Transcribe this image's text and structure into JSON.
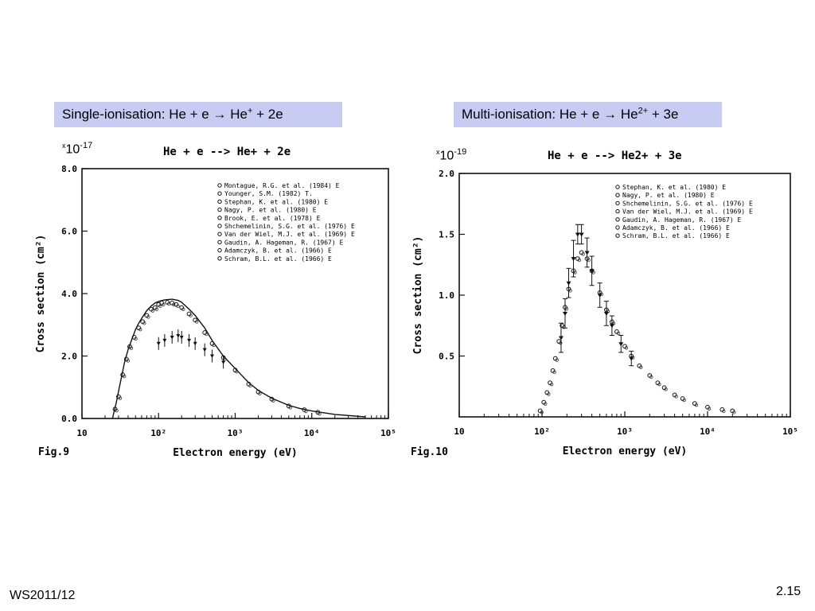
{
  "slide": {
    "left_caption": {
      "base": "Single-ionisation: He + e → He",
      "sup": "+",
      "tail": " + 2e"
    },
    "right_caption": {
      "base": "Multi-ionisation: He + e → He",
      "sup": "2+",
      "tail": " + 3e"
    },
    "left_scale": {
      "base": "10",
      "sup": "-17",
      "prefix": "x"
    },
    "right_scale": {
      "base": "10",
      "sup": "-19",
      "prefix": "x"
    },
    "footer_left": "WS2011/12",
    "footer_right": "2.15",
    "accent_color": "#c9ccf2"
  },
  "chart_data": [
    {
      "type": "scatter",
      "title": "He + e --> He+ + 2e",
      "figure_label": "Fig.9",
      "xlabel": "Electron energy (eV)",
      "ylabel": "Cross section (cm²)",
      "xscale": "log",
      "xlim": [
        10,
        100000
      ],
      "ylim": [
        0,
        8
      ],
      "x_ticks": [
        "10",
        "10²",
        "10³",
        "10⁴",
        "10⁵"
      ],
      "y_ticks": [
        "0.0",
        "2.0",
        "4.0",
        "6.0",
        "8.0"
      ],
      "legend_position": "top-right",
      "legend": [
        "Montague, R.G. et al. (1984) E",
        "Younger, S.M. (1982) T.",
        "Stephan, K. et al. (1980) E",
        "Nagy, P. et al. (1980) E",
        "Brook, E. et al. (1978) E",
        "Shchemelinin, S.G. et al. (1976) E",
        "Van der Wiel, M.J. et al. (1969) E",
        "Gaudin, A. Hageman, R. (1967) E",
        "Adamczyk, B. et al. (1966) E",
        "Schram, B.L. et al. (1966) E"
      ],
      "series": [
        {
          "name": "curve",
          "x": [
            25,
            28,
            32,
            36,
            40,
            45,
            50,
            55,
            60,
            70,
            80,
            90,
            100,
            120,
            150,
            180,
            200,
            250,
            300,
            400,
            500,
            700,
            1000,
            1500,
            2000,
            3000,
            5000,
            7000,
            10000,
            20000,
            50000
          ],
          "y": [
            0.0,
            0.5,
            1.2,
            1.8,
            2.2,
            2.55,
            2.85,
            3.05,
            3.2,
            3.45,
            3.6,
            3.7,
            3.75,
            3.8,
            3.82,
            3.78,
            3.72,
            3.5,
            3.3,
            2.9,
            2.5,
            2.0,
            1.6,
            1.15,
            0.9,
            0.65,
            0.42,
            0.32,
            0.24,
            0.13,
            0.05
          ]
        },
        {
          "name": "points",
          "x": [
            27,
            30,
            34,
            38,
            42,
            48,
            55,
            62,
            70,
            80,
            90,
            100,
            110,
            130,
            150,
            170,
            200,
            250,
            300,
            400,
            500,
            700,
            1000,
            1500,
            2000,
            3000,
            5000,
            8000,
            12000
          ],
          "y": [
            0.3,
            0.7,
            1.4,
            1.9,
            2.3,
            2.6,
            2.9,
            3.1,
            3.3,
            3.5,
            3.55,
            3.65,
            3.7,
            3.72,
            3.7,
            3.65,
            3.55,
            3.35,
            3.15,
            2.75,
            2.4,
            1.95,
            1.55,
            1.1,
            0.85,
            0.62,
            0.4,
            0.28,
            0.2
          ]
        },
        {
          "name": "low_branch",
          "x": [
            100,
            120,
            150,
            180,
            200,
            250,
            300,
            400,
            500,
            700
          ],
          "y": [
            2.4,
            2.5,
            2.6,
            2.65,
            2.6,
            2.5,
            2.4,
            2.2,
            2.0,
            1.8
          ]
        }
      ]
    },
    {
      "type": "scatter",
      "title": "He + e --> He2+ + 3e",
      "figure_label": "Fig.10",
      "xlabel": "Electron energy (eV)",
      "ylabel": "Cross section (cm²)",
      "xscale": "log",
      "xlim": [
        10,
        100000
      ],
      "ylim": [
        0,
        2.0
      ],
      "x_ticks": [
        "10",
        "10²",
        "10³",
        "10⁴",
        "10⁵"
      ],
      "y_ticks": [
        "0.5",
        "1.0",
        "1.5",
        "2.0"
      ],
      "legend_position": "top-right",
      "legend": [
        "Stephan, K. et al. (1980) E",
        "Nagy, P. et al. (1980) E",
        "Shchemelinin, S.G. et al. (1976) E",
        "Van der Wiel, M.J. et al. (1969) E",
        "Gaudin, A. Hageman, R. (1967) E",
        "Adamczyk, B. et al. (1966) E",
        "Schram, B.L. et al. (1966) E"
      ],
      "series": [
        {
          "name": "points",
          "x": [
            95,
            105,
            115,
            125,
            135,
            145,
            160,
            175,
            190,
            210,
            240,
            270,
            300,
            350,
            400,
            500,
            600,
            700,
            800,
            1000,
            1200,
            1500,
            2000,
            2500,
            3000,
            4000,
            5000,
            7000,
            10000,
            15000,
            20000
          ],
          "y": [
            0.05,
            0.12,
            0.2,
            0.28,
            0.38,
            0.48,
            0.62,
            0.75,
            0.9,
            1.05,
            1.2,
            1.3,
            1.35,
            1.3,
            1.2,
            1.02,
            0.88,
            0.78,
            0.7,
            0.58,
            0.5,
            0.42,
            0.34,
            0.28,
            0.24,
            0.18,
            0.15,
            0.11,
            0.08,
            0.06,
            0.05
          ]
        },
        {
          "name": "errorbars",
          "x": [
            170,
            190,
            210,
            240,
            270,
            300,
            350,
            400,
            500,
            600,
            700,
            900,
            1200
          ],
          "y": [
            0.65,
            0.85,
            1.1,
            1.3,
            1.5,
            1.5,
            1.35,
            1.2,
            1.0,
            0.85,
            0.75,
            0.6,
            0.48
          ],
          "err": [
            0.12,
            0.12,
            0.12,
            0.15,
            0.08,
            0.08,
            0.12,
            0.12,
            0.1,
            0.1,
            0.08,
            0.07,
            0.06
          ]
        }
      ]
    }
  ]
}
